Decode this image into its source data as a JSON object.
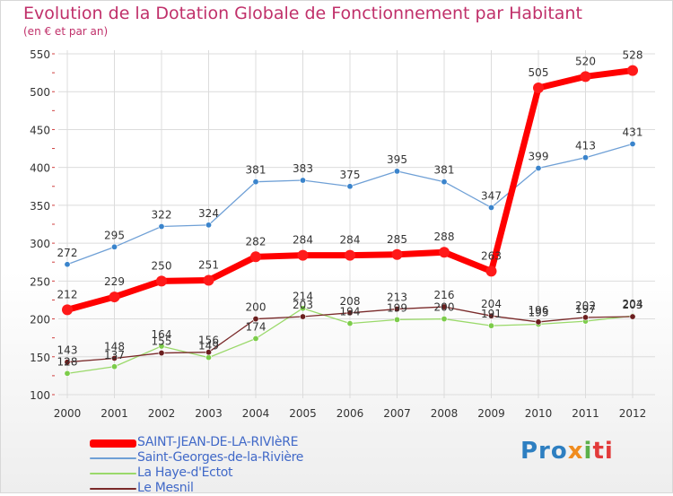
{
  "title": "Evolution de la Dotation Globale de Fonctionnement par Habitant",
  "subtitle": "(en € et par an)",
  "logo": "Proxiti",
  "colors": {
    "title": "#c0306a",
    "axis_text": "#333333",
    "grid": "#dcdcdc",
    "legend_text": "#4169c8"
  },
  "chart_data": {
    "type": "line",
    "title": "Evolution de la Dotation Globale de Fonctionnement par Habitant",
    "subtitle": "(en € et par an)",
    "xlabel": "",
    "ylabel": "",
    "ylim": [
      100,
      550
    ],
    "yticks": [
      100,
      150,
      200,
      250,
      300,
      350,
      400,
      450,
      500,
      550
    ],
    "grid": true,
    "legend_position": "bottom-left",
    "x": [
      "2000",
      "2001",
      "2002",
      "2003",
      "2004",
      "2005",
      "2006",
      "2007",
      "2008",
      "2009",
      "2010",
      "2011",
      "2012"
    ],
    "series": [
      {
        "name": "Saint-Georges-de-la-Rivière",
        "color": "#6fa0d6",
        "marker": "#3a84cc",
        "width": 1.3,
        "r": 3.2,
        "values": [
          272,
          295,
          322,
          324,
          381,
          383,
          375,
          395,
          381,
          347,
          399,
          413,
          431
        ]
      },
      {
        "name": "La Haye-d'Ectot",
        "color": "#9ad96a",
        "marker": "#7ccc4a",
        "width": 1.3,
        "r": 3.2,
        "values": [
          128,
          137,
          164,
          149,
          174,
          214,
          194,
          199,
          200,
          191,
          193,
          197,
          204
        ]
      },
      {
        "name": "Le Mesnil",
        "color": "#7a2a2a",
        "marker": "#6b1e1e",
        "width": 1.3,
        "r": 3.2,
        "values": [
          143,
          148,
          155,
          156,
          200,
          203,
          208,
          213,
          216,
          204,
          196,
          202,
          203
        ]
      },
      {
        "name": "SAINT-JEAN-DE-LA-RIVIèRE",
        "color": "#ff0000",
        "marker": "#ff1a1a",
        "width": 7,
        "r": 6,
        "values": [
          212,
          229,
          250,
          251,
          282,
          284,
          284,
          285,
          288,
          263,
          505,
          520,
          528
        ]
      }
    ],
    "legend": [
      "SAINT-JEAN-DE-LA-RIVIèRE",
      "Saint-Georges-de-la-Rivière",
      "La Haye-d'Ectot",
      "Le Mesnil"
    ]
  }
}
